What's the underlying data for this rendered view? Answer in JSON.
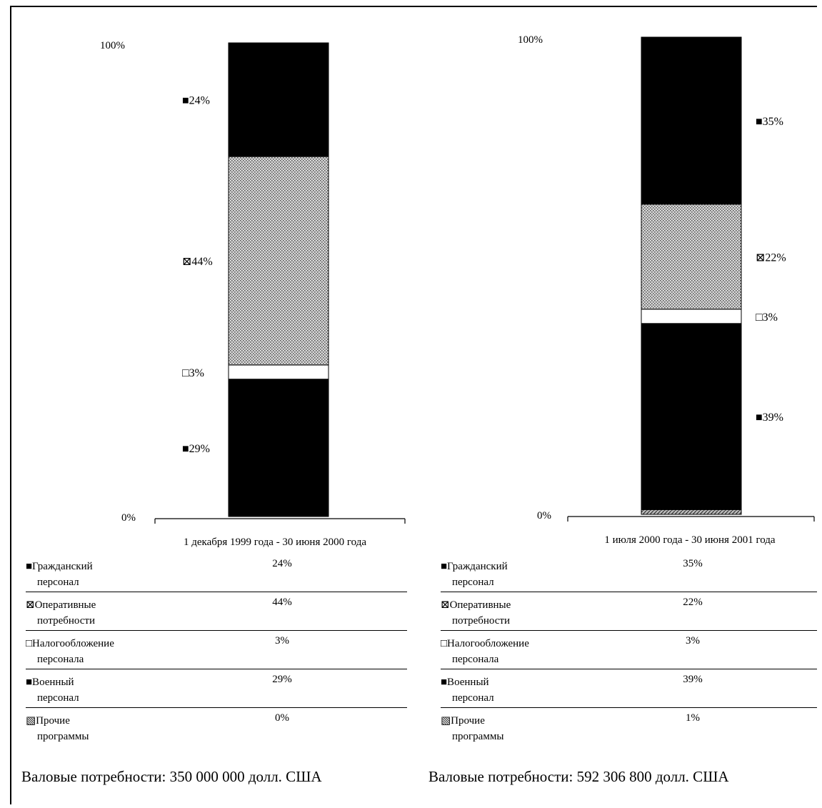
{
  "chart_data": [
    {
      "type": "stacked-bar",
      "category": "1 декабря 1999 года - 30 июня 2000 года",
      "y_top_label": "100%",
      "y_bottom_label": "0%",
      "segments": [
        {
          "name": "Прочие программы",
          "value": 0,
          "label": "",
          "pattern": "hatch"
        },
        {
          "name": "Военный персонал",
          "value": 29,
          "label": "29%",
          "pattern": "black"
        },
        {
          "name": "Налогообложение персонала",
          "value": 3,
          "label": "3%",
          "pattern": "white"
        },
        {
          "name": "Оперативные потребности",
          "value": 44,
          "label": "44%",
          "pattern": "dots"
        },
        {
          "name": "Гражданский персонал",
          "value": 24,
          "label": "24%",
          "pattern": "black"
        }
      ],
      "legend": [
        {
          "line1": "Гражданский",
          "line2": "персонал",
          "value": "24%",
          "marker": "■"
        },
        {
          "line1": "Оперативные",
          "line2": "потребности",
          "value": "44%",
          "marker": "⊠"
        },
        {
          "line1": "Налогообложение",
          "line2": "персонала",
          "value": "3%",
          "marker": "□"
        },
        {
          "line1": "Военный",
          "line2": "персонал",
          "value": "29%",
          "marker": "■"
        },
        {
          "line1": "Прочие",
          "line2": "программы",
          "value": "0%",
          "marker": "▧"
        }
      ],
      "total": "Валовые потребности: 350 000 000 долл. США"
    },
    {
      "type": "stacked-bar",
      "category": "1 июля 2000 года - 30 июня 2001 года",
      "y_top_label": "100%",
      "y_bottom_label": "0%",
      "segments": [
        {
          "name": "Прочие программы",
          "value": 1,
          "label": "",
          "pattern": "hatch"
        },
        {
          "name": "Военный персонал",
          "value": 39,
          "label": "39%",
          "pattern": "black"
        },
        {
          "name": "Налогообложение персонала",
          "value": 3,
          "label": "3%",
          "pattern": "white"
        },
        {
          "name": "Оперативные потребности",
          "value": 22,
          "label": "22%",
          "pattern": "dots"
        },
        {
          "name": "Гражданский персонал",
          "value": 35,
          "label": "35%",
          "pattern": "black"
        }
      ],
      "legend": [
        {
          "line1": "Гражданский",
          "line2": "персонал",
          "value": "35%",
          "marker": "■"
        },
        {
          "line1": "Оперативные",
          "line2": "потребности",
          "value": "22%",
          "marker": "⊠"
        },
        {
          "line1": "Налогообложение",
          "line2": "персонала",
          "value": "3%",
          "marker": "□"
        },
        {
          "line1": "Военный",
          "line2": "персонал",
          "value": "39%",
          "marker": "■"
        },
        {
          "line1": "Прочие",
          "line2": "программы",
          "value": "1%",
          "marker": "▧"
        }
      ],
      "total": "Валовые потребности: 592 306 800  долл. США"
    }
  ],
  "colors": {
    "ink": "#000000",
    "dots_bg": "#d9d9d9",
    "dots_fg": "#555555"
  }
}
